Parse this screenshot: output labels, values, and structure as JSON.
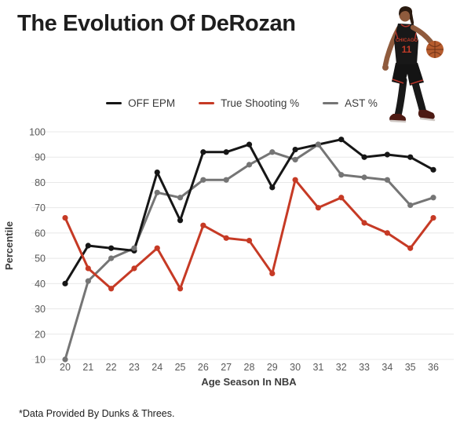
{
  "header": {
    "title": "The Evolution Of DeRozan"
  },
  "player_image": {
    "jersey_text": "CHICAGO",
    "jersey_number": "11"
  },
  "chart_data": {
    "type": "line",
    "title": "The Evolution Of DeRozan",
    "xlabel": "Age Season In NBA",
    "ylabel": "Percentile",
    "x": [
      20,
      21,
      22,
      23,
      24,
      25,
      26,
      27,
      28,
      29,
      30,
      31,
      32,
      33,
      34,
      35,
      36
    ],
    "yticks": [
      100,
      90,
      80,
      70,
      60,
      50,
      40,
      30,
      20,
      10
    ],
    "ylim": [
      10,
      100
    ],
    "grid": "horizontal",
    "legend_position": "top-center",
    "series": [
      {
        "name": "OFF EPM",
        "color": "#161616",
        "values": [
          40,
          55,
          54,
          53,
          84,
          65,
          92,
          92,
          95,
          78,
          93,
          95,
          97,
          90,
          91,
          90,
          85
        ]
      },
      {
        "name": "True Shooting %",
        "color": "#c63a25",
        "values": [
          66,
          46,
          38,
          46,
          54,
          38,
          63,
          58,
          57,
          44,
          81,
          70,
          74,
          64,
          60,
          54,
          66
        ]
      },
      {
        "name": "AST %",
        "color": "#757575",
        "values": [
          10,
          41,
          50,
          54,
          76,
          74,
          81,
          81,
          87,
          92,
          89,
          95,
          83,
          82,
          81,
          71,
          74
        ]
      }
    ],
    "colors": {
      "grid": "#e8e8e8",
      "tick": "#595959",
      "axis_label": "#3c3c3c"
    }
  },
  "footer": {
    "note": "*Data Provided By Dunks & Threes."
  }
}
